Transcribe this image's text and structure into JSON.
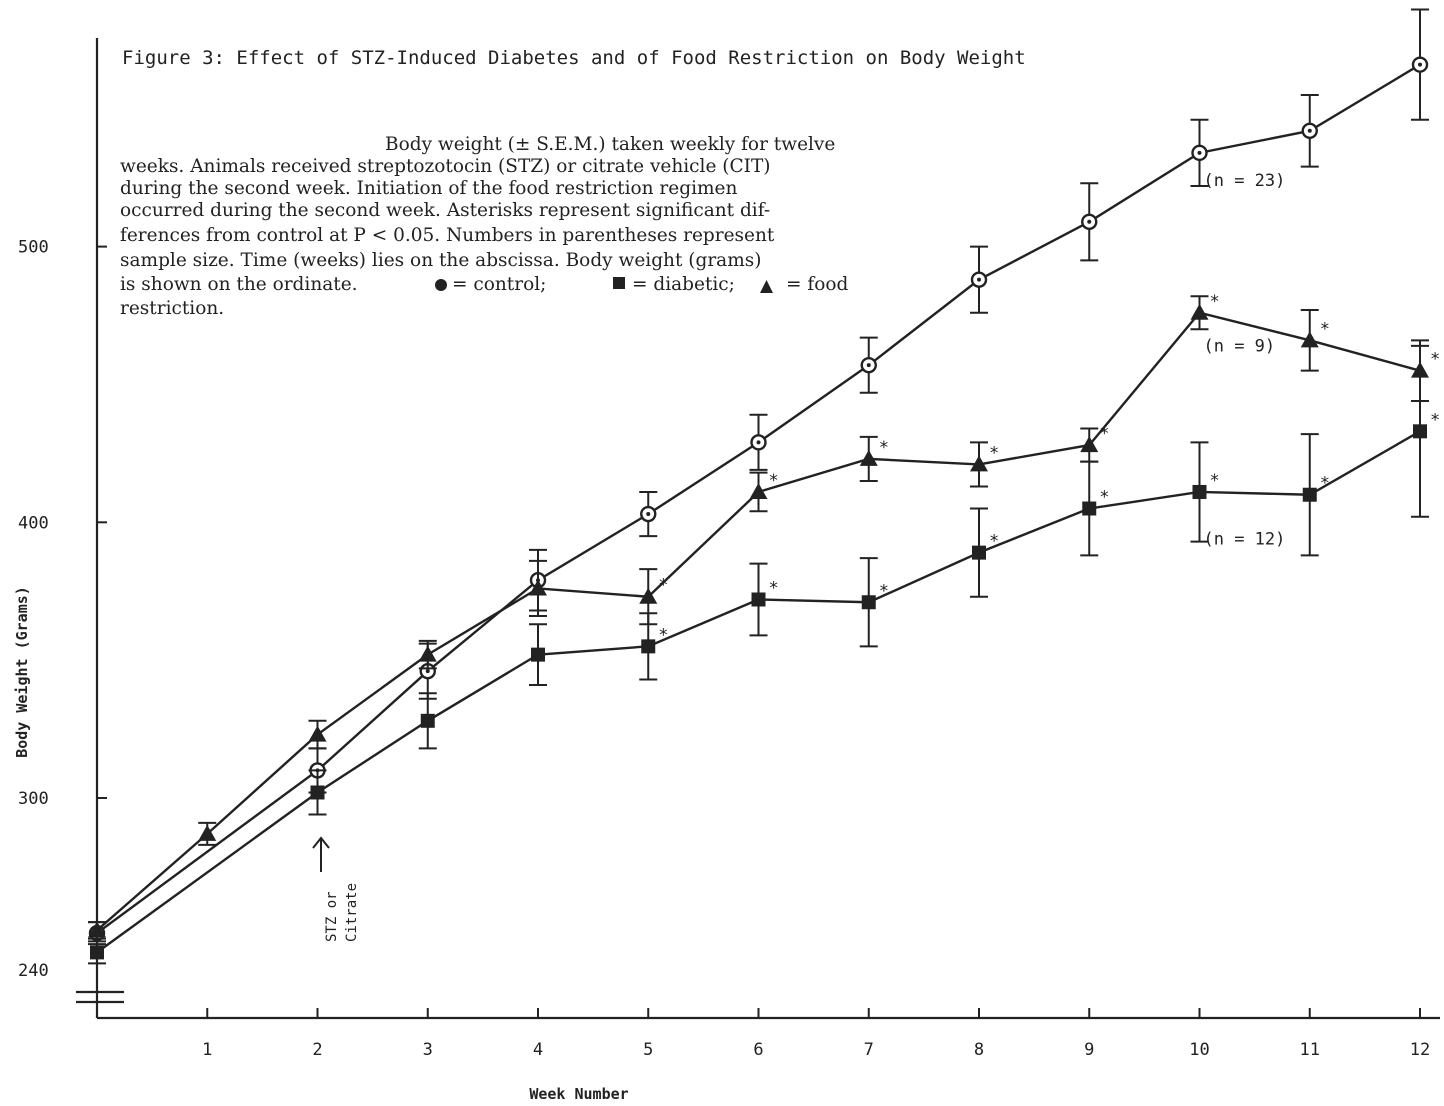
{
  "chart_data": {
    "type": "line",
    "title": "Figure 3:  Effect of STZ-Induced Diabetes and of Food Restriction on Body Weight",
    "caption_lines": [
      "Body weight (± S.E.M.) taken weekly for twelve",
      "weeks.  Animals received streptozotocin (STZ) or citrate vehicle (CIT)",
      "during the second week.  Initiation of the food restriction regimen",
      "occurred during the second week.  Asterisks represent significant dif-",
      "ferences from control at P < 0.05.  Numbers in parentheses represent",
      "sample size.  Time (weeks) lies on the abscissa.  Body weight (grams)",
      "is shown on the ordinate.",
      "restriction."
    ],
    "legend_text": {
      "control": "= control;",
      "diabetic": "= diabetic;",
      "food": "= food"
    },
    "xlabel": "Week Number",
    "ylabel": "Body Weight (Grams)",
    "x_ticks": [
      1,
      2,
      3,
      4,
      5,
      6,
      7,
      8,
      9,
      10,
      11,
      12
    ],
    "x_tick_labels": [
      "1",
      "2",
      "3",
      "4",
      "5",
      "6",
      "7",
      "8",
      "9",
      "10",
      "11",
      "12"
    ],
    "y_ticks": [
      240,
      300,
      400,
      500
    ],
    "y_tick_labels": [
      "240",
      "300",
      "400",
      "500"
    ],
    "xlim": [
      0,
      12.2
    ],
    "ylim": [
      229,
      579
    ],
    "axis_break": true,
    "series": [
      {
        "name": "control",
        "marker": "circle",
        "x": [
          0,
          2,
          3,
          4,
          5,
          6,
          7,
          8,
          9,
          10,
          11,
          12
        ],
        "y": [
          251,
          310,
          346,
          379,
          403,
          429,
          457,
          488,
          509,
          534,
          542,
          566
        ],
        "err": [
          4,
          8,
          10,
          11,
          8,
          10,
          10,
          12,
          14,
          12,
          13,
          20
        ],
        "sig": [
          false,
          false,
          false,
          false,
          false,
          false,
          false,
          false,
          false,
          false,
          false,
          false
        ]
      },
      {
        "name": "diabetic",
        "marker": "square",
        "x": [
          0,
          2,
          3,
          4,
          5,
          6,
          7,
          8,
          9,
          10,
          11,
          12
        ],
        "y": [
          244,
          302,
          328,
          352,
          355,
          372,
          371,
          389,
          405,
          411,
          410,
          433
        ],
        "err": [
          4,
          8,
          10,
          11,
          12,
          13,
          16,
          16,
          17,
          18,
          22,
          31
        ],
        "sig": [
          false,
          false,
          false,
          false,
          true,
          true,
          true,
          true,
          true,
          true,
          true,
          true
        ]
      },
      {
        "name": "food restriction",
        "marker": "triangle",
        "x": [
          0,
          1,
          2,
          3,
          4,
          5,
          6,
          7,
          8,
          9,
          10,
          11,
          12
        ],
        "y": [
          252,
          287,
          323,
          352,
          376,
          373,
          411,
          423,
          421,
          428,
          476,
          466,
          455
        ],
        "err": [
          3,
          4,
          5,
          5,
          10,
          10,
          7,
          8,
          8,
          6,
          6,
          11,
          11
        ],
        "sig": [
          false,
          false,
          false,
          false,
          false,
          true,
          true,
          true,
          true,
          true,
          true,
          true,
          true
        ]
      }
    ],
    "annotations": [
      {
        "text": "(n = 23)",
        "x": 10,
        "y": 522
      },
      {
        "text": "(n = 9)",
        "x": 10,
        "y": 462
      },
      {
        "text": "(n = 12)",
        "x": 10,
        "y": 392
      }
    ],
    "arrow_label": [
      "STZ or",
      "Citrate"
    ],
    "significance_mark": "*"
  }
}
